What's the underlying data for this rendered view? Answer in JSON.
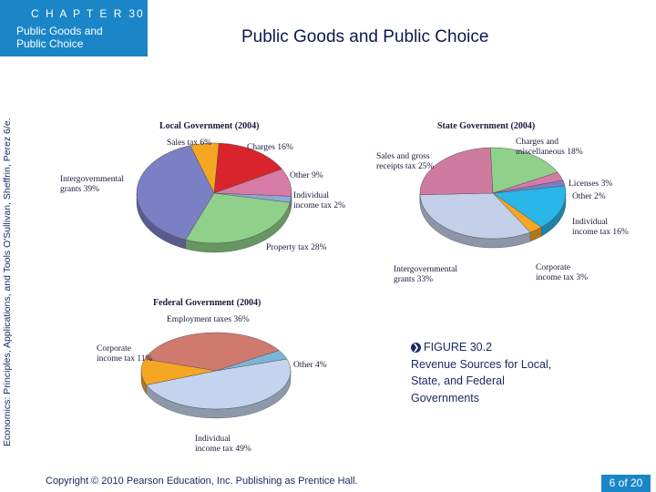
{
  "header": {
    "chapter_label": "C H A P T E R",
    "chapter_number": "30",
    "chapter_title_line1": "Public Goods and",
    "chapter_title_line2": "Public Choice"
  },
  "sidebar": {
    "book_credit": "Economics: Principles, Applications, and Tools O'Sullivan, Sheffrin, Perez 6/e."
  },
  "slide": {
    "title": "Public Goods and Public Choice"
  },
  "caption": {
    "figure_number": "FIGURE 30.2",
    "line1": "Revenue Sources for Local,",
    "line2": "State, and Federal",
    "line3": "Governments"
  },
  "footer": {
    "copyright": "Copyright © 2010  Pearson Education, Inc. Publishing as Prentice Hall.",
    "page_number": "6 of 20"
  },
  "chart_data": [
    {
      "type": "pie",
      "title": "Local Government (2004)",
      "slices": [
        {
          "label": "Sales tax",
          "value": 6,
          "color": "#f5a623"
        },
        {
          "label": "Charges",
          "value": 16,
          "color": "#d9242b"
        },
        {
          "label": "Other",
          "value": 9,
          "color": "#d77aa6"
        },
        {
          "label": "Individual income tax",
          "value": 2,
          "color": "#8fa8d8"
        },
        {
          "label": "Property tax",
          "value": 28,
          "color": "#8fd18a"
        },
        {
          "label": "Intergovernmental grants",
          "value": 39,
          "color": "#7b7fc4"
        }
      ]
    },
    {
      "type": "pie",
      "title": "State Government (2004)",
      "slices": [
        {
          "label": "Charges and miscellaneous",
          "value": 18,
          "color": "#8fd18a"
        },
        {
          "label": "Licenses",
          "value": 3,
          "color": "#d77aa6"
        },
        {
          "label": "Other",
          "value": 2,
          "color": "#7b7fc4"
        },
        {
          "label": "Individual income tax",
          "value": 16,
          "color": "#29b6e8"
        },
        {
          "label": "Corporate income tax",
          "value": 3,
          "color": "#f5a623"
        },
        {
          "label": "Intergovernmental grants",
          "value": 33,
          "color": "#c4d0ea"
        },
        {
          "label": "Sales and gross receipts tax",
          "value": 25,
          "color": "#cf7ba0"
        }
      ]
    },
    {
      "type": "pie",
      "title": "Federal Government (2004)",
      "slices": [
        {
          "label": "Employment taxes",
          "value": 36,
          "color": "#d07a6e"
        },
        {
          "label": "Other",
          "value": 4,
          "color": "#7bb6d8"
        },
        {
          "label": "Individual income tax",
          "value": 49,
          "color": "#c4d4ee"
        },
        {
          "label": "Corporate income tax",
          "value": 11,
          "color": "#f5a623"
        }
      ]
    }
  ]
}
